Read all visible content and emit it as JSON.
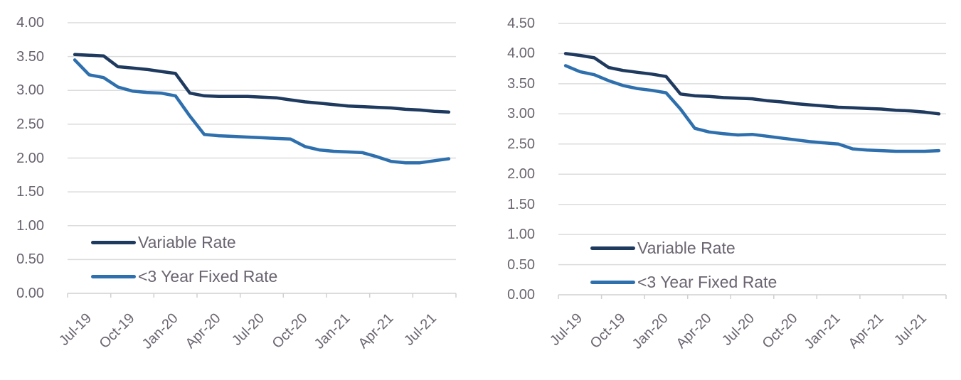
{
  "page": {
    "background": "#ffffff",
    "description": "Two side-by-side line charts of home-loan interest rates (per cent), Variable Rate vs <3 Year Fixed Rate, monthly from Jul-19 to Sep-21"
  },
  "colors": {
    "variable_rate": "#1f3a5f",
    "fixed_rate": "#2e6fad",
    "gridline": "#dcdcdc",
    "axis": "#d2cfcf",
    "label_text": "#6b6470"
  },
  "chart_data": [
    {
      "id": "left-chart",
      "type": "line",
      "title": "",
      "xlabel": "",
      "ylabel": "",
      "grid": "horizontal",
      "legend_position": "inside-bottom-left",
      "x": [
        "Jul-19",
        "Aug-19",
        "Sep-19",
        "Oct-19",
        "Nov-19",
        "Dec-19",
        "Jan-20",
        "Feb-20",
        "Mar-20",
        "Apr-20",
        "May-20",
        "Jun-20",
        "Jul-20",
        "Aug-20",
        "Sep-20",
        "Oct-20",
        "Nov-20",
        "Dec-20",
        "Jan-21",
        "Feb-21",
        "Mar-21",
        "Apr-21",
        "May-21",
        "Jun-21",
        "Jul-21",
        "Aug-21",
        "Sep-21"
      ],
      "x_axis": {
        "tick_labels": [
          "Jul-19",
          "Oct-19",
          "Jan-20",
          "Apr-20",
          "Jul-20",
          "Oct-20",
          "Jan-21",
          "Apr-21",
          "Jul-21"
        ]
      },
      "y_axis": {
        "min": 0.0,
        "max": 4.0,
        "step": 0.5,
        "tick_labels": [
          "4.00",
          "3.50",
          "3.00",
          "2.50",
          "2.00",
          "1.50",
          "1.00",
          "0.50",
          "0.00"
        ]
      },
      "series": [
        {
          "name": "Variable Rate",
          "color": "#1f3a5f",
          "values": [
            3.53,
            3.52,
            3.51,
            3.35,
            3.33,
            3.31,
            3.28,
            3.25,
            2.96,
            2.92,
            2.91,
            2.91,
            2.91,
            2.9,
            2.89,
            2.86,
            2.83,
            2.81,
            2.79,
            2.77,
            2.76,
            2.75,
            2.74,
            2.72,
            2.71,
            2.69,
            2.68
          ]
        },
        {
          "name": "<3 Year Fixed Rate",
          "color": "#2e6fad",
          "values": [
            3.45,
            3.23,
            3.19,
            3.05,
            2.99,
            2.97,
            2.96,
            2.92,
            2.62,
            2.35,
            2.33,
            2.32,
            2.31,
            2.3,
            2.29,
            2.28,
            2.17,
            2.12,
            2.1,
            2.09,
            2.08,
            2.02,
            1.95,
            1.93,
            1.93,
            1.96,
            1.99
          ]
        }
      ]
    },
    {
      "id": "right-chart",
      "type": "line",
      "title": "",
      "xlabel": "",
      "ylabel": "",
      "grid": "horizontal",
      "legend_position": "inside-bottom-left",
      "x": [
        "Jul-19",
        "Aug-19",
        "Sep-19",
        "Oct-19",
        "Nov-19",
        "Dec-19",
        "Jan-20",
        "Feb-20",
        "Mar-20",
        "Apr-20",
        "May-20",
        "Jun-20",
        "Jul-20",
        "Aug-20",
        "Sep-20",
        "Oct-20",
        "Nov-20",
        "Dec-20",
        "Jan-21",
        "Feb-21",
        "Mar-21",
        "Apr-21",
        "May-21",
        "Jun-21",
        "Jul-21",
        "Aug-21",
        "Sep-21"
      ],
      "x_axis": {
        "tick_labels": [
          "Jul-19",
          "Oct-19",
          "Jan-20",
          "Apr-20",
          "Jul-20",
          "Oct-20",
          "Jan-21",
          "Apr-21",
          "Jul-21"
        ]
      },
      "y_axis": {
        "min": 0.0,
        "max": 4.5,
        "step": 0.5,
        "tick_labels": [
          "4.50",
          "4.00",
          "3.50",
          "3.00",
          "2.50",
          "2.00",
          "1.50",
          "1.00",
          "0.50",
          "0.00"
        ]
      },
      "series": [
        {
          "name": "Variable Rate",
          "color": "#1f3a5f",
          "values": [
            4.0,
            3.97,
            3.93,
            3.77,
            3.72,
            3.69,
            3.66,
            3.62,
            3.33,
            3.3,
            3.29,
            3.27,
            3.26,
            3.25,
            3.22,
            3.2,
            3.17,
            3.15,
            3.13,
            3.11,
            3.1,
            3.09,
            3.08,
            3.06,
            3.05,
            3.03,
            3.0
          ]
        },
        {
          "name": "<3 Year Fixed Rate",
          "color": "#2e6fad",
          "values": [
            3.8,
            3.7,
            3.65,
            3.55,
            3.47,
            3.42,
            3.39,
            3.35,
            3.08,
            2.76,
            2.7,
            2.67,
            2.65,
            2.66,
            2.63,
            2.6,
            2.57,
            2.54,
            2.52,
            2.5,
            2.42,
            2.4,
            2.39,
            2.38,
            2.38,
            2.38,
            2.39
          ]
        }
      ]
    }
  ]
}
